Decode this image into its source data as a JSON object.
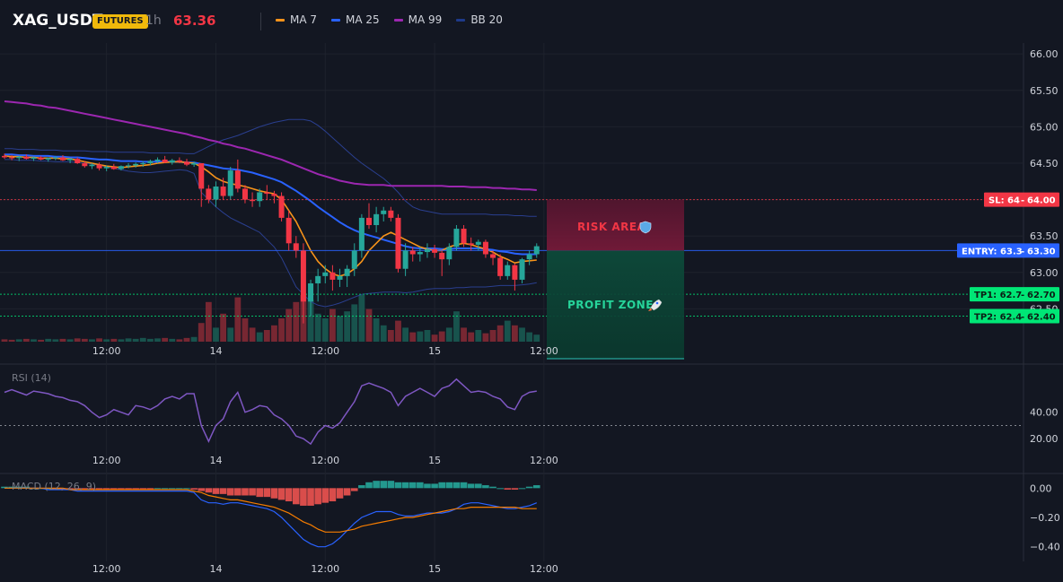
{
  "header": {
    "symbol": "XAG_USDT",
    "badge": "FUTURES",
    "interval": "1h",
    "last_price": "63.36"
  },
  "legend": [
    {
      "label": "MA 7",
      "color": "#f7931a"
    },
    {
      "label": "MA 25",
      "color": "#2962ff"
    },
    {
      "label": "MA 99",
      "color": "#9c27b0"
    },
    {
      "label": "BB 20",
      "color": "#1e3a8a"
    }
  ],
  "colors": {
    "up": "#26a69a",
    "down": "#f23645",
    "ma7": "#f7931a",
    "ma25": "#2962ff",
    "ma99": "#9c27b0",
    "bb": "#2a3f8f",
    "rsi": "#7e57c2",
    "macd": "#2962ff",
    "signal": "#f57c00"
  },
  "annotations": {
    "risk_label": "RISK AREA",
    "risk_icon": "shield-icon",
    "profit_label": "PROFIT ZONE",
    "profit_icon": "rocket-icon"
  },
  "chart_data": {
    "type": "candlestick",
    "x_start": "13 08:00",
    "x_interval": "1h",
    "time_labels": [
      "12:00",
      "14",
      "12:00",
      "15",
      "12:00"
    ],
    "price_axis": {
      "ticks": [
        "66.00",
        "65.50",
        "65.00",
        "64.50",
        "64.00",
        "63.50",
        "63.00",
        "62.50"
      ],
      "ylim": [
        62.0,
        66.15
      ]
    },
    "levels": [
      {
        "name": "SL",
        "tag": "SL: 64",
        "axis_label": "64.00",
        "value": 64.0,
        "color": "#f23645"
      },
      {
        "name": "ENTRY",
        "tag": "ENTRY: 63.3",
        "axis_label": "63.30",
        "value": 63.3,
        "color": "#2962ff"
      },
      {
        "name": "TP1",
        "tag": "TP1: 62.7",
        "axis_label": "62.70",
        "value": 62.7,
        "color": "#00e676"
      },
      {
        "name": "TP2",
        "tag": "TP2: 62.4",
        "axis_label": "62.40",
        "value": 62.4,
        "color": "#00e676"
      }
    ],
    "candles": [
      [
        64.6,
        64.63,
        64.56,
        64.58
      ],
      [
        64.58,
        64.61,
        64.54,
        64.57
      ],
      [
        64.57,
        64.6,
        64.53,
        64.59
      ],
      [
        64.59,
        64.62,
        64.55,
        64.56
      ],
      [
        64.56,
        64.59,
        64.53,
        64.58
      ],
      [
        64.58,
        64.6,
        64.54,
        64.55
      ],
      [
        64.55,
        64.58,
        64.52,
        64.57
      ],
      [
        64.57,
        64.6,
        64.54,
        64.58
      ],
      [
        64.58,
        64.61,
        64.53,
        64.54
      ],
      [
        64.54,
        64.57,
        64.5,
        64.56
      ],
      [
        64.56,
        64.58,
        64.49,
        64.5
      ],
      [
        64.5,
        64.53,
        64.44,
        64.46
      ],
      [
        64.46,
        64.5,
        64.42,
        64.48
      ],
      [
        64.48,
        64.51,
        64.4,
        64.43
      ],
      [
        64.43,
        64.47,
        64.39,
        64.45
      ],
      [
        64.45,
        64.49,
        64.41,
        64.42
      ],
      [
        64.42,
        64.47,
        64.4,
        64.46
      ],
      [
        64.46,
        64.5,
        64.43,
        64.47
      ],
      [
        64.47,
        64.51,
        64.44,
        64.49
      ],
      [
        64.49,
        64.53,
        64.45,
        64.5
      ],
      [
        64.5,
        64.55,
        64.47,
        64.53
      ],
      [
        64.53,
        64.58,
        64.5,
        64.55
      ],
      [
        64.55,
        64.6,
        64.5,
        64.51
      ],
      [
        64.51,
        64.56,
        64.48,
        64.54
      ],
      [
        64.54,
        64.58,
        64.5,
        64.52
      ],
      [
        64.52,
        64.56,
        64.46,
        64.48
      ],
      [
        64.48,
        64.52,
        64.45,
        64.5
      ],
      [
        64.5,
        64.5,
        63.9,
        64.15
      ],
      [
        64.15,
        64.2,
        63.95,
        64.0
      ],
      [
        64.0,
        64.25,
        63.9,
        64.18
      ],
      [
        64.18,
        64.3,
        64.0,
        64.05
      ],
      [
        64.05,
        64.45,
        64.0,
        64.4
      ],
      [
        64.4,
        64.55,
        64.1,
        64.15
      ],
      [
        64.15,
        64.2,
        63.95,
        64.0
      ],
      [
        64.0,
        64.1,
        63.9,
        63.98
      ],
      [
        63.98,
        64.15,
        63.9,
        64.1
      ],
      [
        64.1,
        64.2,
        64.0,
        64.08
      ],
      [
        64.08,
        64.12,
        63.95,
        64.05
      ],
      [
        64.05,
        64.1,
        63.7,
        63.75
      ],
      [
        63.75,
        63.85,
        63.3,
        63.4
      ],
      [
        63.4,
        63.5,
        63.2,
        63.3
      ],
      [
        63.3,
        63.4,
        62.3,
        62.6
      ],
      [
        62.6,
        62.9,
        62.4,
        62.85
      ],
      [
        62.85,
        63.05,
        62.6,
        62.95
      ],
      [
        62.95,
        63.1,
        62.85,
        63.0
      ],
      [
        63.0,
        63.1,
        62.75,
        62.9
      ],
      [
        62.9,
        63.05,
        62.8,
        62.95
      ],
      [
        62.95,
        63.1,
        62.8,
        63.05
      ],
      [
        63.05,
        63.4,
        62.95,
        63.3
      ],
      [
        63.3,
        63.8,
        63.2,
        63.75
      ],
      [
        63.75,
        63.95,
        63.6,
        63.65
      ],
      [
        63.65,
        63.9,
        63.55,
        63.8
      ],
      [
        63.8,
        63.9,
        63.7,
        63.85
      ],
      [
        63.85,
        63.9,
        63.7,
        63.75
      ],
      [
        63.75,
        63.8,
        63.0,
        63.05
      ],
      [
        63.05,
        63.4,
        62.95,
        63.3
      ],
      [
        63.3,
        63.35,
        63.15,
        63.25
      ],
      [
        63.25,
        63.35,
        63.15,
        63.28
      ],
      [
        63.28,
        63.4,
        63.2,
        63.32
      ],
      [
        63.32,
        63.38,
        63.2,
        63.27
      ],
      [
        63.27,
        63.3,
        62.95,
        63.18
      ],
      [
        63.18,
        63.4,
        63.1,
        63.35
      ],
      [
        63.35,
        63.65,
        63.3,
        63.6
      ],
      [
        63.6,
        63.65,
        63.35,
        63.4
      ],
      [
        63.4,
        63.48,
        63.3,
        63.38
      ],
      [
        63.38,
        63.45,
        63.3,
        63.42
      ],
      [
        63.42,
        63.45,
        63.2,
        63.25
      ],
      [
        63.25,
        63.3,
        63.1,
        63.2
      ],
      [
        63.2,
        63.25,
        62.9,
        62.95
      ],
      [
        62.95,
        63.15,
        62.9,
        63.1
      ],
      [
        63.1,
        63.12,
        62.75,
        62.9
      ],
      [
        62.9,
        63.2,
        62.85,
        63.18
      ],
      [
        63.18,
        63.3,
        63.1,
        63.25
      ],
      [
        63.25,
        63.4,
        63.2,
        63.36
      ]
    ],
    "series": [
      {
        "name": "MA 7",
        "values": [
          64.6,
          64.59,
          64.59,
          64.58,
          64.58,
          64.57,
          64.57,
          64.57,
          64.56,
          64.56,
          64.54,
          64.52,
          64.5,
          64.48,
          64.46,
          64.45,
          64.44,
          64.45,
          64.46,
          64.47,
          64.48,
          64.5,
          64.51,
          64.52,
          64.52,
          64.51,
          64.5,
          64.45,
          64.38,
          64.3,
          64.25,
          64.22,
          64.2,
          64.18,
          64.15,
          64.12,
          64.1,
          64.08,
          64.0,
          63.85,
          63.7,
          63.5,
          63.3,
          63.15,
          63.05,
          62.98,
          62.95,
          62.98,
          63.05,
          63.15,
          63.3,
          63.4,
          63.5,
          63.55,
          63.5,
          63.45,
          63.4,
          63.35,
          63.32,
          63.3,
          63.3,
          63.35,
          63.38,
          63.4,
          63.38,
          63.35,
          63.32,
          63.28,
          63.22,
          63.18,
          63.13,
          63.15,
          63.16,
          63.17
        ]
      },
      {
        "name": "MA 25",
        "values": [
          64.62,
          64.62,
          64.61,
          64.61,
          64.6,
          64.6,
          64.6,
          64.59,
          64.59,
          64.58,
          64.58,
          64.57,
          64.56,
          64.55,
          64.55,
          64.54,
          64.53,
          64.53,
          64.53,
          64.52,
          64.52,
          64.52,
          64.52,
          64.52,
          64.52,
          64.51,
          64.51,
          64.49,
          64.47,
          64.45,
          64.43,
          64.42,
          64.41,
          64.39,
          64.37,
          64.34,
          64.31,
          64.28,
          64.24,
          64.18,
          64.12,
          64.05,
          63.98,
          63.9,
          63.83,
          63.76,
          63.69,
          63.63,
          63.58,
          63.54,
          63.51,
          63.48,
          63.45,
          63.42,
          63.39,
          63.36,
          63.34,
          63.33,
          63.33,
          63.33,
          63.32,
          63.32,
          63.33,
          63.33,
          63.33,
          63.33,
          63.32,
          63.31,
          63.29,
          63.28,
          63.26,
          63.25,
          63.25,
          63.25
        ]
      },
      {
        "name": "MA 99",
        "values": [
          65.35,
          65.34,
          65.33,
          65.32,
          65.3,
          65.29,
          65.27,
          65.26,
          65.24,
          65.22,
          65.2,
          65.18,
          65.16,
          65.14,
          65.12,
          65.1,
          65.08,
          65.06,
          65.04,
          65.02,
          65.0,
          64.98,
          64.96,
          64.94,
          64.92,
          64.9,
          64.87,
          64.85,
          64.82,
          64.8,
          64.77,
          64.75,
          64.72,
          64.7,
          64.67,
          64.64,
          64.61,
          64.58,
          64.55,
          64.51,
          64.47,
          64.43,
          64.39,
          64.35,
          64.32,
          64.29,
          64.26,
          64.24,
          64.22,
          64.21,
          64.2,
          64.2,
          64.2,
          64.19,
          64.19,
          64.19,
          64.19,
          64.19,
          64.19,
          64.19,
          64.19,
          64.18,
          64.18,
          64.18,
          64.17,
          64.17,
          64.17,
          64.16,
          64.16,
          64.15,
          64.15,
          64.14,
          64.14,
          64.13
        ]
      },
      {
        "name": "BB upper",
        "values": [
          64.7,
          64.7,
          64.69,
          64.69,
          64.69,
          64.68,
          64.68,
          64.68,
          64.67,
          64.67,
          64.67,
          64.67,
          64.66,
          64.66,
          64.66,
          64.65,
          64.65,
          64.65,
          64.65,
          64.65,
          64.64,
          64.64,
          64.64,
          64.64,
          64.64,
          64.63,
          64.63,
          64.68,
          64.73,
          64.78,
          64.82,
          64.85,
          64.88,
          64.92,
          64.96,
          65.0,
          65.03,
          65.06,
          65.08,
          65.1,
          65.1,
          65.1,
          65.08,
          65.02,
          64.94,
          64.85,
          64.76,
          64.67,
          64.58,
          64.5,
          64.43,
          64.36,
          64.29,
          64.2,
          64.1,
          63.98,
          63.9,
          63.86,
          63.84,
          63.82,
          63.8,
          63.8,
          63.8,
          63.8,
          63.8,
          63.8,
          63.8,
          63.79,
          63.79,
          63.79,
          63.78,
          63.78,
          63.77,
          63.77
        ]
      },
      {
        "name": "BB lower",
        "values": [
          64.55,
          64.55,
          64.54,
          64.54,
          64.54,
          64.53,
          64.53,
          64.52,
          64.52,
          64.52,
          64.51,
          64.5,
          64.49,
          64.47,
          64.45,
          64.43,
          64.41,
          64.39,
          64.38,
          64.37,
          64.37,
          64.38,
          64.39,
          64.4,
          64.41,
          64.4,
          64.36,
          64.1,
          64.0,
          63.9,
          63.82,
          63.75,
          63.7,
          63.65,
          63.6,
          63.55,
          63.45,
          63.35,
          63.2,
          63.0,
          62.8,
          62.7,
          62.6,
          62.55,
          62.53,
          62.55,
          62.58,
          62.62,
          62.66,
          62.7,
          62.71,
          62.72,
          62.73,
          62.73,
          62.73,
          62.72,
          62.73,
          62.75,
          62.77,
          62.78,
          62.78,
          62.78,
          62.79,
          62.79,
          62.8,
          62.8,
          62.8,
          62.81,
          62.82,
          62.82,
          62.82,
          62.83,
          62.84,
          62.86
        ]
      }
    ],
    "volume": [
      0.05,
      0.04,
      0.05,
      0.06,
      0.05,
      0.04,
      0.06,
      0.05,
      0.06,
      0.05,
      0.07,
      0.06,
      0.05,
      0.07,
      0.05,
      0.06,
      0.05,
      0.07,
      0.06,
      0.08,
      0.06,
      0.07,
      0.08,
      0.06,
      0.05,
      0.08,
      0.1,
      0.4,
      0.85,
      0.3,
      0.6,
      0.3,
      0.95,
      0.5,
      0.3,
      0.2,
      0.25,
      0.35,
      0.5,
      0.7,
      0.85,
      1.0,
      0.9,
      0.6,
      0.5,
      0.7,
      0.55,
      0.65,
      0.8,
      1.0,
      0.7,
      0.5,
      0.35,
      0.25,
      0.45,
      0.3,
      0.2,
      0.22,
      0.25,
      0.15,
      0.22,
      0.3,
      0.65,
      0.3,
      0.2,
      0.25,
      0.18,
      0.25,
      0.35,
      0.45,
      0.35,
      0.3,
      0.2,
      0.15
    ],
    "rsi": {
      "label": "RSI (14)",
      "ticks": [
        "40.00",
        "20.00"
      ],
      "ylim": [
        10,
        75
      ],
      "level": 30,
      "values": [
        55,
        57,
        55,
        53,
        56,
        55,
        54,
        52,
        51,
        49,
        48,
        45,
        40,
        36,
        38,
        42,
        40,
        38,
        45,
        44,
        42,
        45,
        50,
        52,
        50,
        54,
        54,
        30,
        18,
        30,
        35,
        48,
        55,
        40,
        42,
        45,
        44,
        38,
        35,
        30,
        22,
        20,
        16,
        25,
        30,
        28,
        32,
        40,
        48,
        60,
        62,
        60,
        58,
        55,
        45,
        52,
        55,
        58,
        55,
        52,
        58,
        60,
        65,
        60,
        55,
        56,
        55,
        52,
        50,
        44,
        42,
        52,
        55,
        56
      ]
    },
    "macd": {
      "label": "MACD (12, 26, 9)",
      "ticks": [
        "0.00",
        "−0.20",
        "−0.40"
      ],
      "ylim": [
        -0.5,
        0.1
      ],
      "hist": [
        0.01,
        0.01,
        0.01,
        0.01,
        0.0,
        0.0,
        0.0,
        -0.01,
        -0.01,
        -0.01,
        -0.01,
        -0.01,
        -0.01,
        -0.01,
        -0.01,
        -0.01,
        -0.01,
        -0.01,
        -0.01,
        -0.01,
        -0.01,
        0.0,
        0.0,
        0.0,
        0.0,
        0.0,
        -0.01,
        -0.02,
        -0.03,
        -0.04,
        -0.04,
        -0.05,
        -0.05,
        -0.05,
        -0.05,
        -0.06,
        -0.06,
        -0.07,
        -0.08,
        -0.09,
        -0.11,
        -0.12,
        -0.12,
        -0.11,
        -0.1,
        -0.09,
        -0.07,
        -0.05,
        -0.02,
        0.02,
        0.04,
        0.05,
        0.05,
        0.05,
        0.04,
        0.04,
        0.04,
        0.04,
        0.03,
        0.03,
        0.04,
        0.04,
        0.04,
        0.04,
        0.03,
        0.03,
        0.02,
        0.01,
        0.0,
        -0.01,
        -0.01,
        0.0,
        0.01,
        0.02
      ],
      "macd": [
        0.0,
        0.0,
        0.0,
        0.0,
        0.0,
        0.0,
        -0.01,
        -0.01,
        -0.01,
        -0.01,
        -0.02,
        -0.02,
        -0.02,
        -0.02,
        -0.02,
        -0.02,
        -0.02,
        -0.02,
        -0.02,
        -0.02,
        -0.02,
        -0.02,
        -0.02,
        -0.02,
        -0.02,
        -0.02,
        -0.03,
        -0.08,
        -0.1,
        -0.1,
        -0.11,
        -0.1,
        -0.1,
        -0.11,
        -0.12,
        -0.13,
        -0.14,
        -0.16,
        -0.2,
        -0.25,
        -0.3,
        -0.35,
        -0.38,
        -0.4,
        -0.4,
        -0.38,
        -0.34,
        -0.29,
        -0.24,
        -0.2,
        -0.18,
        -0.16,
        -0.16,
        -0.16,
        -0.18,
        -0.19,
        -0.19,
        -0.18,
        -0.17,
        -0.17,
        -0.17,
        -0.16,
        -0.14,
        -0.11,
        -0.1,
        -0.1,
        -0.11,
        -0.12,
        -0.13,
        -0.14,
        -0.14,
        -0.13,
        -0.12,
        -0.1
      ],
      "signal": [
        0.0,
        0.0,
        0.0,
        0.0,
        0.0,
        0.0,
        0.0,
        0.0,
        0.0,
        -0.01,
        -0.01,
        -0.01,
        -0.01,
        -0.01,
        -0.01,
        -0.01,
        -0.01,
        -0.01,
        -0.01,
        -0.01,
        -0.01,
        -0.01,
        -0.01,
        -0.01,
        -0.01,
        -0.01,
        -0.02,
        -0.03,
        -0.05,
        -0.06,
        -0.07,
        -0.08,
        -0.08,
        -0.09,
        -0.1,
        -0.11,
        -0.12,
        -0.13,
        -0.15,
        -0.17,
        -0.2,
        -0.23,
        -0.25,
        -0.28,
        -0.3,
        -0.3,
        -0.3,
        -0.29,
        -0.28,
        -0.26,
        -0.25,
        -0.24,
        -0.23,
        -0.22,
        -0.21,
        -0.2,
        -0.2,
        -0.19,
        -0.18,
        -0.17,
        -0.16,
        -0.15,
        -0.14,
        -0.14,
        -0.13,
        -0.13,
        -0.13,
        -0.13,
        -0.13,
        -0.13,
        -0.13,
        -0.14,
        -0.14,
        -0.14
      ]
    }
  }
}
